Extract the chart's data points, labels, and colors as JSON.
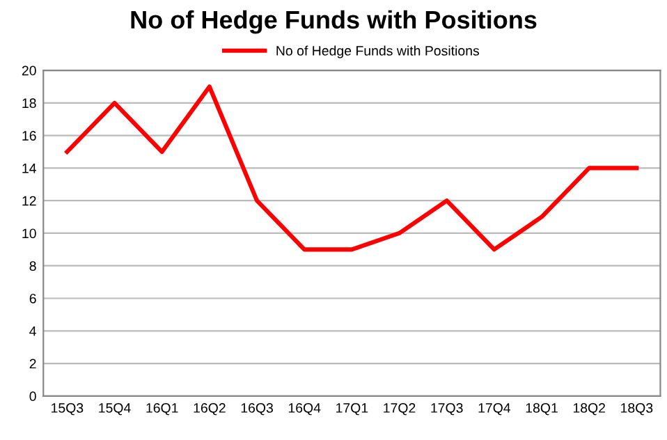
{
  "chart_data": {
    "type": "line",
    "title": "No of Hedge Funds with Positions",
    "categories": [
      "15Q3",
      "15Q4",
      "16Q1",
      "16Q2",
      "16Q3",
      "16Q4",
      "17Q1",
      "17Q2",
      "17Q3",
      "17Q4",
      "18Q1",
      "18Q2",
      "18Q3"
    ],
    "series": [
      {
        "name": "No of Hedge Funds with Positions",
        "color": "#ff0000",
        "values": [
          15,
          18,
          15,
          19,
          12,
          9,
          9,
          10,
          12,
          9,
          11,
          14,
          14
        ]
      }
    ],
    "ylim": [
      0,
      20
    ],
    "yticks": [
      0,
      2,
      4,
      6,
      8,
      10,
      12,
      14,
      16,
      18,
      20
    ],
    "grid": "y",
    "legend": "top",
    "marker": "none",
    "line_style": "solid"
  }
}
